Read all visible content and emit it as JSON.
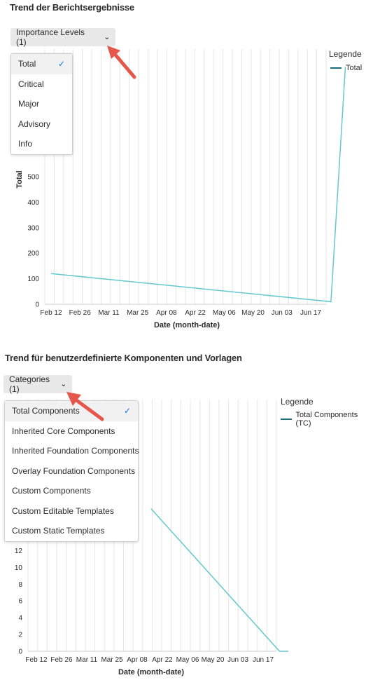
{
  "colors": {
    "series": "#66c8cf",
    "legend_swatch": "#1b6f7e",
    "arrow": "#e5574a",
    "check": "#1473e6",
    "grid": "#e6e6e6"
  },
  "chart1": {
    "title": "Trend der Berichtsergebnisse",
    "dropdown_label": "Importance Levels (1)",
    "menu_items": [
      {
        "label": "Total",
        "selected": true
      },
      {
        "label": "Critical",
        "selected": false
      },
      {
        "label": "Major",
        "selected": false
      },
      {
        "label": "Advisory",
        "selected": false
      },
      {
        "label": "Info",
        "selected": false
      }
    ],
    "legend_title": "Legende",
    "legend_items": [
      "Total"
    ]
  },
  "chart2": {
    "title": "Trend für benutzerdefinierte Komponenten und Vorlagen",
    "dropdown_label": "Categories (1)",
    "menu_items": [
      {
        "label": "Total Components",
        "selected": true
      },
      {
        "label": "Inherited Core Components",
        "selected": false
      },
      {
        "label": "Inherited Foundation Components",
        "selected": false
      },
      {
        "label": "Overlay Foundation Components",
        "selected": false
      },
      {
        "label": "Custom Components",
        "selected": false
      },
      {
        "label": "Custom Editable Templates",
        "selected": false
      },
      {
        "label": "Custom Static Templates",
        "selected": false
      }
    ],
    "legend_title": "Legende",
    "legend_items": [
      "Total Components (TC)"
    ]
  },
  "chart_data": [
    {
      "type": "line",
      "title": "Trend der Berichtsergebnisse",
      "xlabel": "Date (month-date)",
      "ylabel": "Total",
      "x_ticks": [
        "Feb 12",
        "Feb 26",
        "Mar 11",
        "Mar 25",
        "Apr 08",
        "Apr 22",
        "May 06",
        "May 20",
        "Jun 03",
        "Jun 17"
      ],
      "y_ticks": [
        0,
        100,
        200,
        300,
        400,
        500
      ],
      "y_tick_labels": [
        "0",
        "100",
        "200",
        "300",
        "400",
        "500"
      ],
      "ylim": [
        0,
        1000
      ],
      "series": [
        {
          "name": "Total",
          "x": [
            0,
            9.7,
            10.2
          ],
          "y": [
            120,
            10,
            930
          ]
        }
      ],
      "legend": "right",
      "grid": "vertical"
    },
    {
      "type": "line",
      "title": "Trend für benutzerdefinierte Komponenten und Vorlagen",
      "xlabel": "Date (month-date)",
      "ylabel": "",
      "x_ticks": [
        "Feb 12",
        "Feb 26",
        "Mar 11",
        "Mar 25",
        "Apr 08",
        "Apr 22",
        "May 06",
        "May 20",
        "Jun 03",
        "Jun 17"
      ],
      "y_ticks": [
        0,
        2,
        4,
        6,
        8,
        10,
        12
      ],
      "y_tick_labels": [
        "0",
        "2",
        "4",
        "6",
        "8",
        "10",
        "12"
      ],
      "ylim": [
        0,
        30
      ],
      "series": [
        {
          "name": "Total Components (TC)",
          "x": [
            4.55,
            9.65,
            10.0
          ],
          "y": [
            17,
            0,
            0
          ]
        }
      ],
      "legend": "right",
      "grid": "vertical"
    }
  ]
}
